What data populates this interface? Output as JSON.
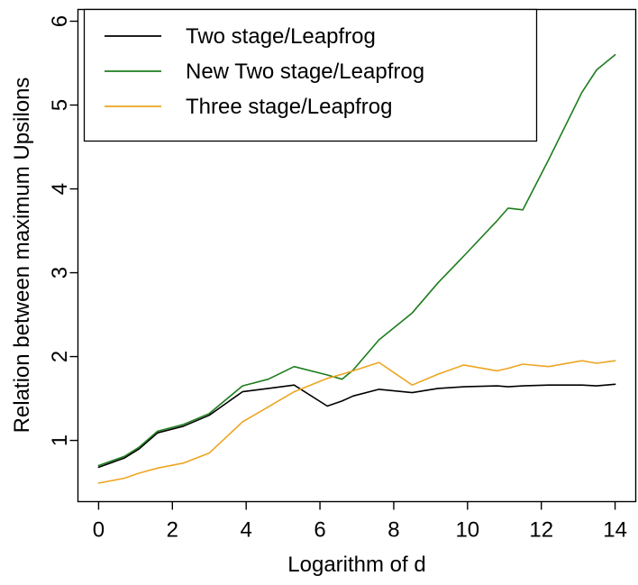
{
  "chart_data": {
    "type": "line",
    "title": "",
    "xlabel": "Logarithm of d",
    "ylabel": "Relation between maximum Upsilons",
    "x_ticks": [
      0,
      2,
      4,
      6,
      8,
      10,
      12,
      14
    ],
    "y_ticks": [
      1,
      2,
      3,
      4,
      5,
      6
    ],
    "xlim": [
      -0.56,
      14.56
    ],
    "ylim": [
      0.27,
      6.14
    ],
    "grid": false,
    "legend_position": "top-left",
    "background_color": "#ffffff",
    "axis_color": "#000000",
    "x": [
      0,
      0.7,
      1.1,
      1.6,
      2.3,
      3.0,
      3.9,
      4.6,
      5.3,
      6.2,
      6.6,
      6.9,
      7.6,
      8.5,
      9.2,
      9.9,
      10.8,
      11.1,
      11.5,
      12.2,
      13.1,
      13.5,
      14.0
    ],
    "series": [
      {
        "name": "Two stage/Leapfrog",
        "color": "#000000",
        "values": [
          0.68,
          0.79,
          0.9,
          1.09,
          1.17,
          1.3,
          1.58,
          1.62,
          1.66,
          1.41,
          1.47,
          1.53,
          1.61,
          1.57,
          1.62,
          1.64,
          1.65,
          1.64,
          1.65,
          1.66,
          1.66,
          1.65,
          1.67
        ]
      },
      {
        "name": "New Two stage/Leapfrog",
        "color": "#1e7d1e",
        "values": [
          0.7,
          0.81,
          0.92,
          1.11,
          1.19,
          1.32,
          1.65,
          1.73,
          1.88,
          1.78,
          1.73,
          1.84,
          2.2,
          2.52,
          2.88,
          3.2,
          3.62,
          3.77,
          3.75,
          4.35,
          5.15,
          5.42,
          5.6
        ]
      },
      {
        "name": "Three stage/Leapfrog",
        "color": "#eda520",
        "values": [
          0.49,
          0.55,
          0.61,
          0.67,
          0.73,
          0.85,
          1.22,
          1.4,
          1.58,
          1.74,
          1.79,
          1.83,
          1.93,
          1.66,
          1.79,
          1.9,
          1.83,
          1.86,
          1.91,
          1.88,
          1.95,
          1.92,
          1.95
        ]
      }
    ]
  }
}
